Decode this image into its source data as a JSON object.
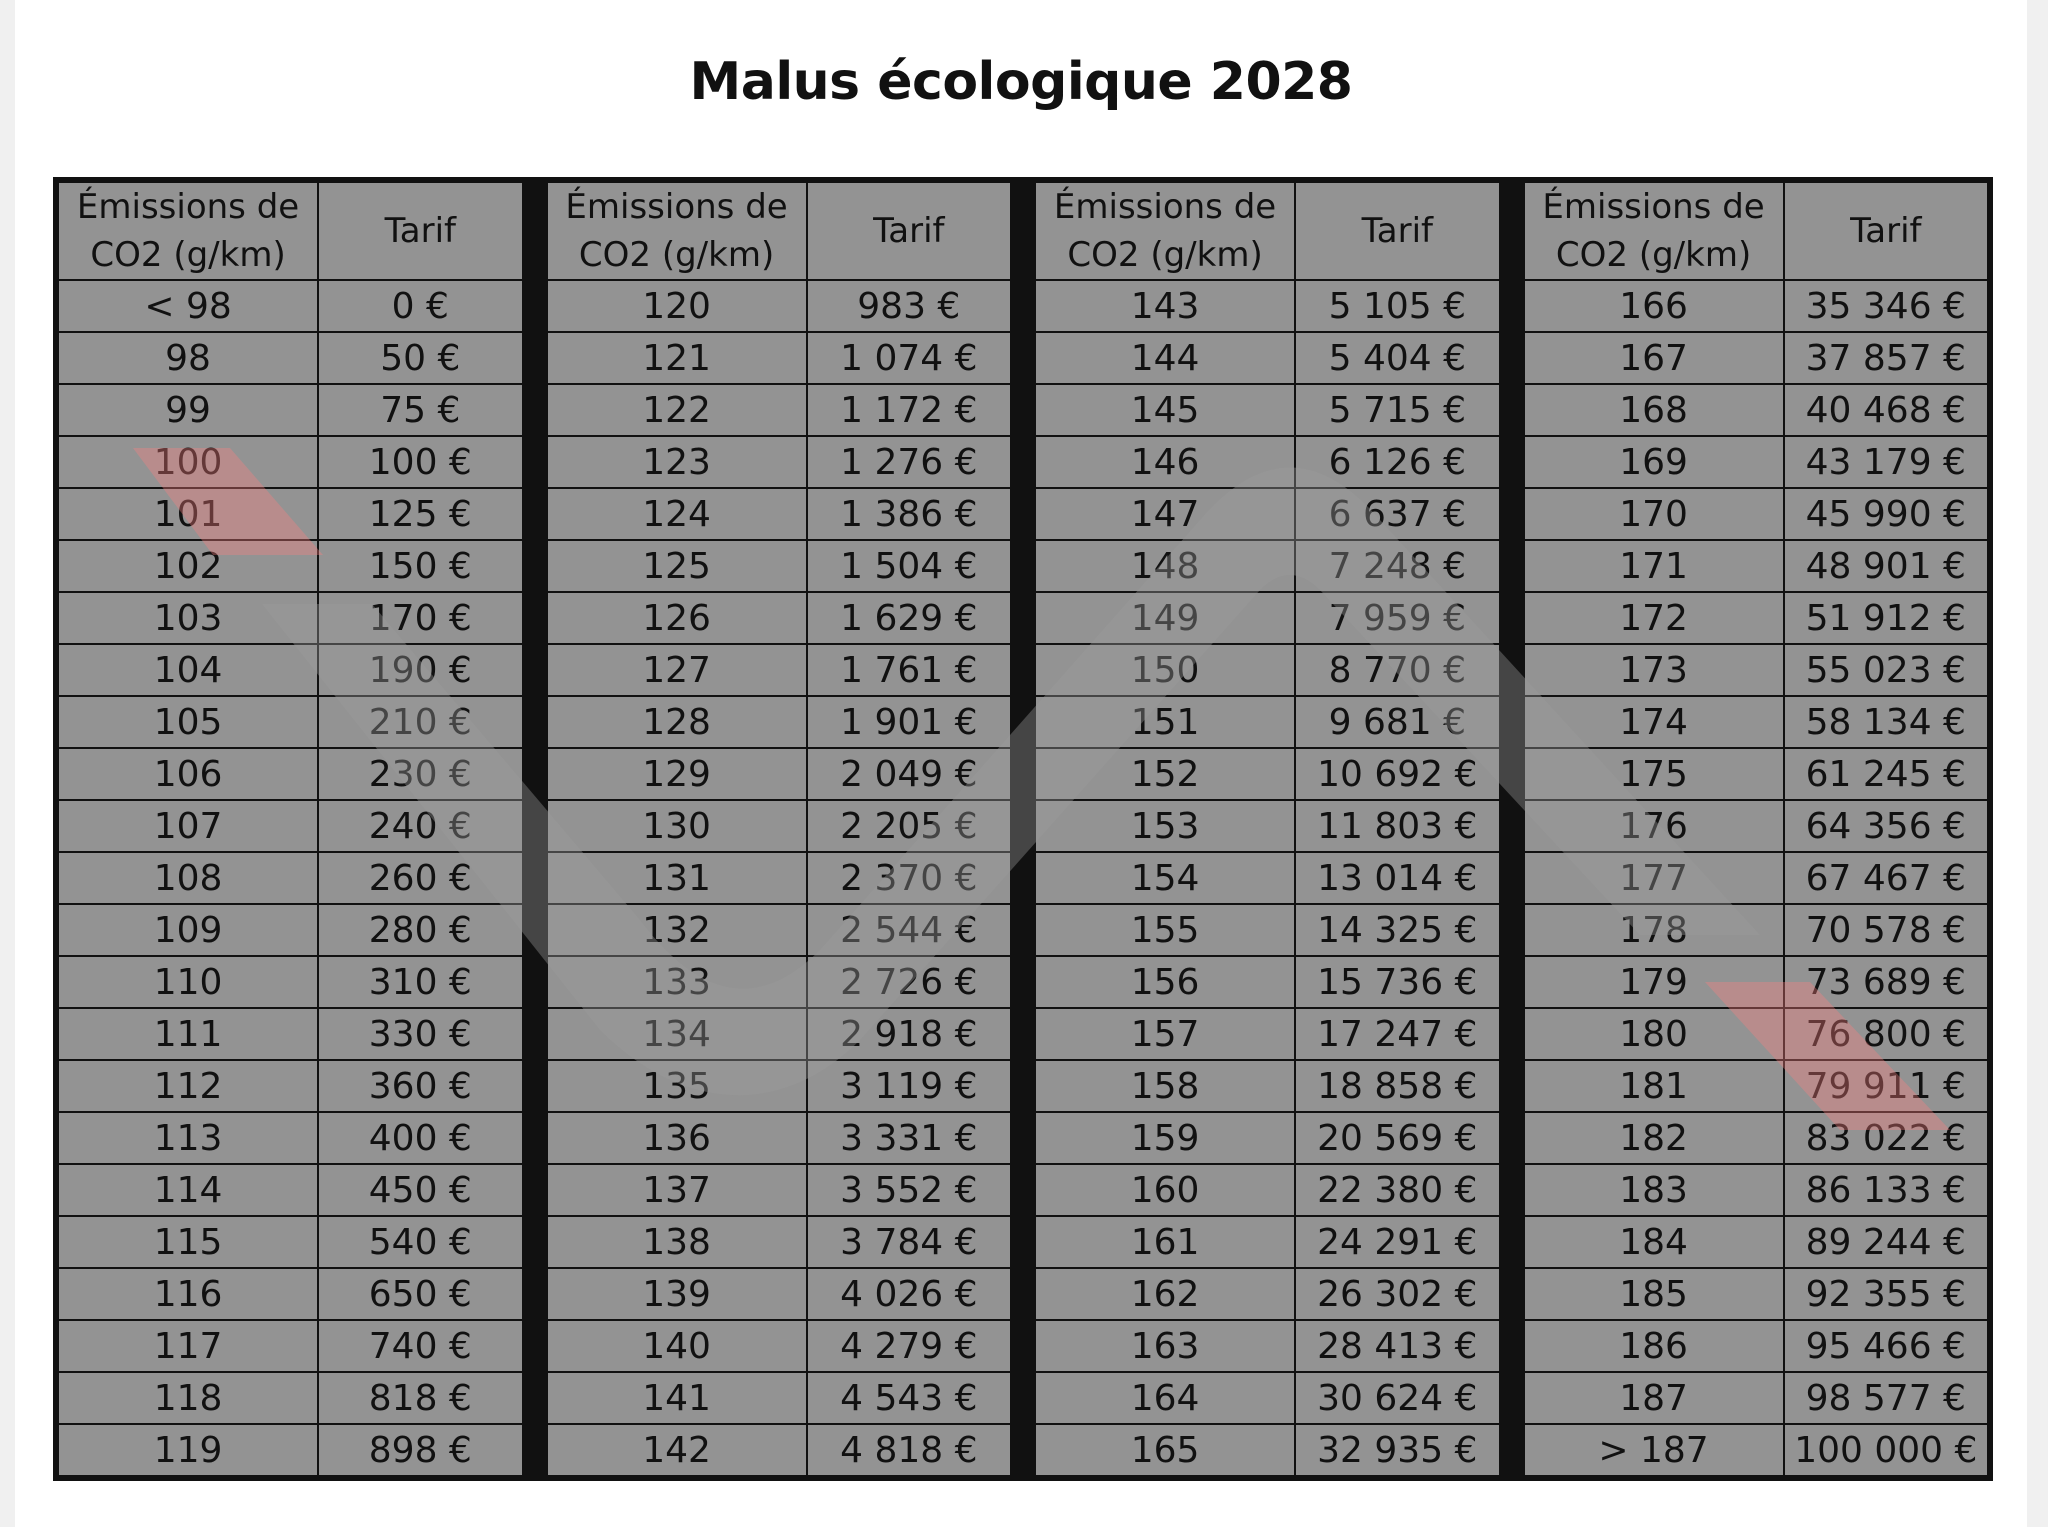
{
  "title": "Malus écologique 2028",
  "headers": {
    "emissions": "Émissions de CO2 (g/km)",
    "tarif": "Tarif"
  },
  "columns": [
    [
      [
        "< 98",
        "0 €"
      ],
      [
        "98",
        "50 €"
      ],
      [
        "99",
        "75 €"
      ],
      [
        "100",
        "100 €"
      ],
      [
        "101",
        "125 €"
      ],
      [
        "102",
        "150 €"
      ],
      [
        "103",
        "170 €"
      ],
      [
        "104",
        "190 €"
      ],
      [
        "105",
        "210 €"
      ],
      [
        "106",
        "230 €"
      ],
      [
        "107",
        "240 €"
      ],
      [
        "108",
        "260 €"
      ],
      [
        "109",
        "280 €"
      ],
      [
        "110",
        "310 €"
      ],
      [
        "111",
        "330 €"
      ],
      [
        "112",
        "360 €"
      ],
      [
        "113",
        "400 €"
      ],
      [
        "114",
        "450 €"
      ],
      [
        "115",
        "540 €"
      ],
      [
        "116",
        "650 €"
      ],
      [
        "117",
        "740 €"
      ],
      [
        "118",
        "818 €"
      ],
      [
        "119",
        "898 €"
      ]
    ],
    [
      [
        "120",
        "983 €"
      ],
      [
        "121",
        "1 074 €"
      ],
      [
        "122",
        "1 172 €"
      ],
      [
        "123",
        "1 276 €"
      ],
      [
        "124",
        "1 386 €"
      ],
      [
        "125",
        "1 504 €"
      ],
      [
        "126",
        "1 629 €"
      ],
      [
        "127",
        "1 761 €"
      ],
      [
        "128",
        "1 901 €"
      ],
      [
        "129",
        "2 049 €"
      ],
      [
        "130",
        "2 205 €"
      ],
      [
        "131",
        "2 370 €"
      ],
      [
        "132",
        "2 544 €"
      ],
      [
        "133",
        "2 726 €"
      ],
      [
        "134",
        "2 918 €"
      ],
      [
        "135",
        "3 119 €"
      ],
      [
        "136",
        "3 331 €"
      ],
      [
        "137",
        "3 552 €"
      ],
      [
        "138",
        "3 784 €"
      ],
      [
        "139",
        "4 026 €"
      ],
      [
        "140",
        "4 279 €"
      ],
      [
        "141",
        "4 543 €"
      ],
      [
        "142",
        "4 818 €"
      ]
    ],
    [
      [
        "143",
        "5 105 €"
      ],
      [
        "144",
        "5 404 €"
      ],
      [
        "145",
        "5 715 €"
      ],
      [
        "146",
        "6 126 €"
      ],
      [
        "147",
        "6 637 €"
      ],
      [
        "148",
        "7 248 €"
      ],
      [
        "149",
        "7 959 €"
      ],
      [
        "150",
        "8 770 €"
      ],
      [
        "151",
        "9 681 €"
      ],
      [
        "152",
        "10 692 €"
      ],
      [
        "153",
        "11 803 €"
      ],
      [
        "154",
        "13 014 €"
      ],
      [
        "155",
        "14 325 €"
      ],
      [
        "156",
        "15 736 €"
      ],
      [
        "157",
        "17 247 €"
      ],
      [
        "158",
        "18 858 €"
      ],
      [
        "159",
        "20 569 €"
      ],
      [
        "160",
        "22 380 €"
      ],
      [
        "161",
        "24 291 €"
      ],
      [
        "162",
        "26 302 €"
      ],
      [
        "163",
        "28 413 €"
      ],
      [
        "164",
        "30 624 €"
      ],
      [
        "165",
        "32 935 €"
      ]
    ],
    [
      [
        "166",
        "35 346 €"
      ],
      [
        "167",
        "37 857 €"
      ],
      [
        "168",
        "40 468 €"
      ],
      [
        "169",
        "43 179 €"
      ],
      [
        "170",
        "45 990 €"
      ],
      [
        "171",
        "48 901 €"
      ],
      [
        "172",
        "51 912 €"
      ],
      [
        "173",
        "55 023 €"
      ],
      [
        "174",
        "58 134 €"
      ],
      [
        "175",
        "61 245 €"
      ],
      [
        "176",
        "64 356 €"
      ],
      [
        "177",
        "67 467 €"
      ],
      [
        "178",
        "70 578 €"
      ],
      [
        "179",
        "73 689 €"
      ],
      [
        "180",
        "76 800 €"
      ],
      [
        "181",
        "79 911 €"
      ],
      [
        "182",
        "83 022 €"
      ],
      [
        "183",
        "86 133 €"
      ],
      [
        "184",
        "89 244 €"
      ],
      [
        "185",
        "92 355 €"
      ],
      [
        "186",
        "95 466 €"
      ],
      [
        "187",
        "98 577 €"
      ],
      [
        "> 187",
        "100 000 €"
      ]
    ]
  ],
  "watermark": {
    "icon": "wave-watermark-icon",
    "gray": "#c8c8c8",
    "red": "#f4a6a6"
  }
}
